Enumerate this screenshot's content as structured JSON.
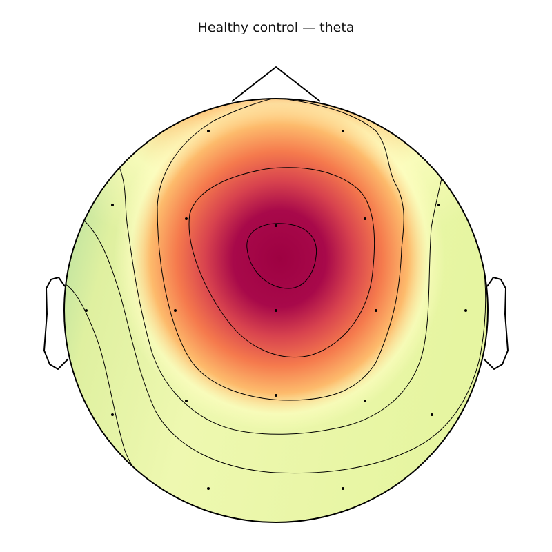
{
  "chart_data": {
    "type": "heatmap",
    "title": "Healthy control — theta",
    "colormap": "Spectral_r",
    "colors": {
      "low": "#9fd8a4",
      "mid_low": "#e8f5a6",
      "mid": "#fffec2",
      "mid_high": "#f7925a",
      "high": "#9e0142"
    },
    "grid": false,
    "legend": "none",
    "contour_levels": 6,
    "sensors": [
      {
        "id": 1,
        "value": 0.42
      },
      {
        "id": 2,
        "value": 0.48
      },
      {
        "id": 3,
        "value": 0.18
      },
      {
        "id": 4,
        "value": 0.88
      },
      {
        "id": 5,
        "value": 0.98
      },
      {
        "id": 6,
        "value": 0.82
      },
      {
        "id": 7,
        "value": 0.22
      },
      {
        "id": 8,
        "value": 0.05
      },
      {
        "id": 9,
        "value": 0.72
      },
      {
        "id": 10,
        "value": 0.95
      },
      {
        "id": 11,
        "value": 0.75
      },
      {
        "id": 12,
        "value": 0.18
      },
      {
        "id": 13,
        "value": 0.08
      },
      {
        "id": 14,
        "value": 0.45
      },
      {
        "id": 15,
        "value": 0.52
      },
      {
        "id": 16,
        "value": 0.32
      },
      {
        "id": 17,
        "value": 0.22
      },
      {
        "id": 18,
        "value": 0.15
      },
      {
        "id": 19,
        "value": 0.16
      }
    ]
  }
}
